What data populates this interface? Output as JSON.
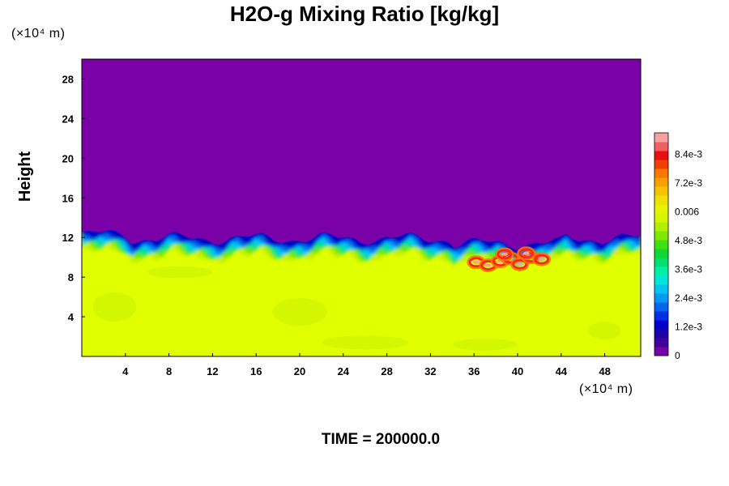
{
  "chart_data": {
    "type": "heatmap",
    "title": "H2O-g Mixing Ratio [kg/kg]",
    "ylabel": "Height",
    "x_unit_label": "(×10⁴ m)",
    "y_unit_label": "(×10⁴ m)",
    "xlim": [
      0,
      51.3
    ],
    "ylim": [
      0,
      30
    ],
    "x_ticks": [
      4,
      8,
      12,
      16,
      20,
      24,
      28,
      32,
      36,
      40,
      44,
      48
    ],
    "y_ticks": [
      4,
      8,
      12,
      16,
      20,
      24,
      28
    ],
    "colorbar": {
      "range": [
        0,
        0.0093
      ],
      "tick_labels": [
        "0",
        "1.2e-3",
        "2.4e-3",
        "3.6e-3",
        "4.8e-3",
        "0.006",
        "7.2e-3",
        "8.4e-3"
      ],
      "tick_values": [
        0,
        0.0012,
        0.0024,
        0.0036,
        0.0048,
        0.006,
        0.0072,
        0.0084
      ],
      "colors": [
        "#7a00a8",
        "#40009c",
        "#1f00a6",
        "#0000c8",
        "#0030e6",
        "#0066f0",
        "#0099f5",
        "#00c4f0",
        "#00e6d8",
        "#00f0a8",
        "#00e070",
        "#10d830",
        "#40e010",
        "#80e800",
        "#b0f000",
        "#d8f400",
        "#e6f200",
        "#f0e000",
        "#f5c400",
        "#f8a000",
        "#f87800",
        "#f04000",
        "#e81010",
        "#f06060",
        "#f8a0a0"
      ]
    },
    "regions": [
      {
        "name": "upper-dry-layer",
        "value": 0.0,
        "color": "#7a00a8",
        "y_from": 12.5,
        "y_to": 30
      },
      {
        "name": "transition-layer",
        "value_range": [
          0.0006,
          0.0055
        ],
        "y_from": 10.5,
        "y_to": 12.5
      },
      {
        "name": "lower-moist-layer",
        "value": 0.0062,
        "color": "#e0ff00",
        "y_from": 0,
        "y_to": 10.5
      },
      {
        "name": "high-moisture-eddies",
        "value": 0.0084,
        "color": "#ff2020",
        "x_range": [
          36,
          43
        ],
        "y_range": [
          8.5,
          10.5
        ]
      }
    ]
  },
  "time_label": "TIME = 200000.0"
}
